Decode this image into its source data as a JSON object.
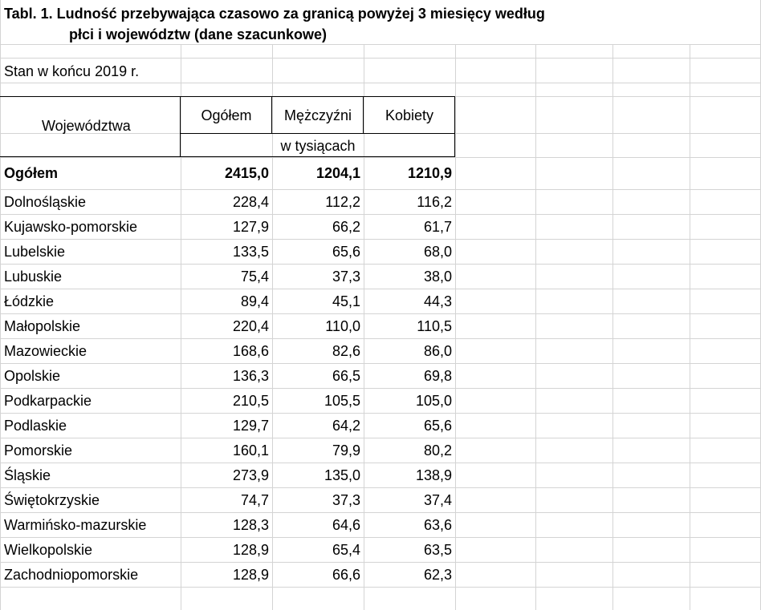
{
  "title": {
    "line1": "Tabl. 1. Ludność przebywająca czasowo za granicą powyżej 3 miesięcy według",
    "line2": "płci i województw (dane szacunkowe)"
  },
  "subtitle": "Stan w końcu 2019 r.",
  "header": {
    "region": "Województwa",
    "total": "Ogółem",
    "men": "Mężczyźni",
    "women": "Kobiety",
    "unit": "w tysiącach"
  },
  "total_row": {
    "name": "Ogółem",
    "total": "2415,0",
    "men": "1204,1",
    "women": "1210,9"
  },
  "rows": [
    {
      "name": "Dolnośląskie",
      "total": "228,4",
      "men": "112,2",
      "women": "116,2"
    },
    {
      "name": "Kujawsko-pomorskie",
      "total": "127,9",
      "men": "66,2",
      "women": "61,7"
    },
    {
      "name": "Lubelskie",
      "total": "133,5",
      "men": "65,6",
      "women": "68,0"
    },
    {
      "name": "Lubuskie",
      "total": "75,4",
      "men": "37,3",
      "women": "38,0"
    },
    {
      "name": "Łódzkie",
      "total": "89,4",
      "men": "45,1",
      "women": "44,3"
    },
    {
      "name": "Małopolskie",
      "total": "220,4",
      "men": "110,0",
      "women": "110,5"
    },
    {
      "name": "Mazowieckie",
      "total": "168,6",
      "men": "82,6",
      "women": "86,0"
    },
    {
      "name": "Opolskie",
      "total": "136,3",
      "men": "66,5",
      "women": "69,8"
    },
    {
      "name": "Podkarpackie",
      "total": "210,5",
      "men": "105,5",
      "women": "105,0"
    },
    {
      "name": "Podlaskie",
      "total": "129,7",
      "men": "64,2",
      "women": "65,6"
    },
    {
      "name": "Pomorskie",
      "total": "160,1",
      "men": "79,9",
      "women": "80,2"
    },
    {
      "name": "Śląskie",
      "total": "273,9",
      "men": "135,0",
      "women": "138,9"
    },
    {
      "name": "Świętokrzyskie",
      "total": "74,7",
      "men": "37,3",
      "women": "37,4"
    },
    {
      "name": "Warmińsko-mazurskie",
      "total": "128,3",
      "men": "64,6",
      "women": "63,6"
    },
    {
      "name": "Wielkopolskie",
      "total": "128,9",
      "men": "65,4",
      "women": "63,5"
    },
    {
      "name": "Zachodniopomorskie",
      "total": "128,9",
      "men": "66,6",
      "women": "62,3"
    }
  ]
}
